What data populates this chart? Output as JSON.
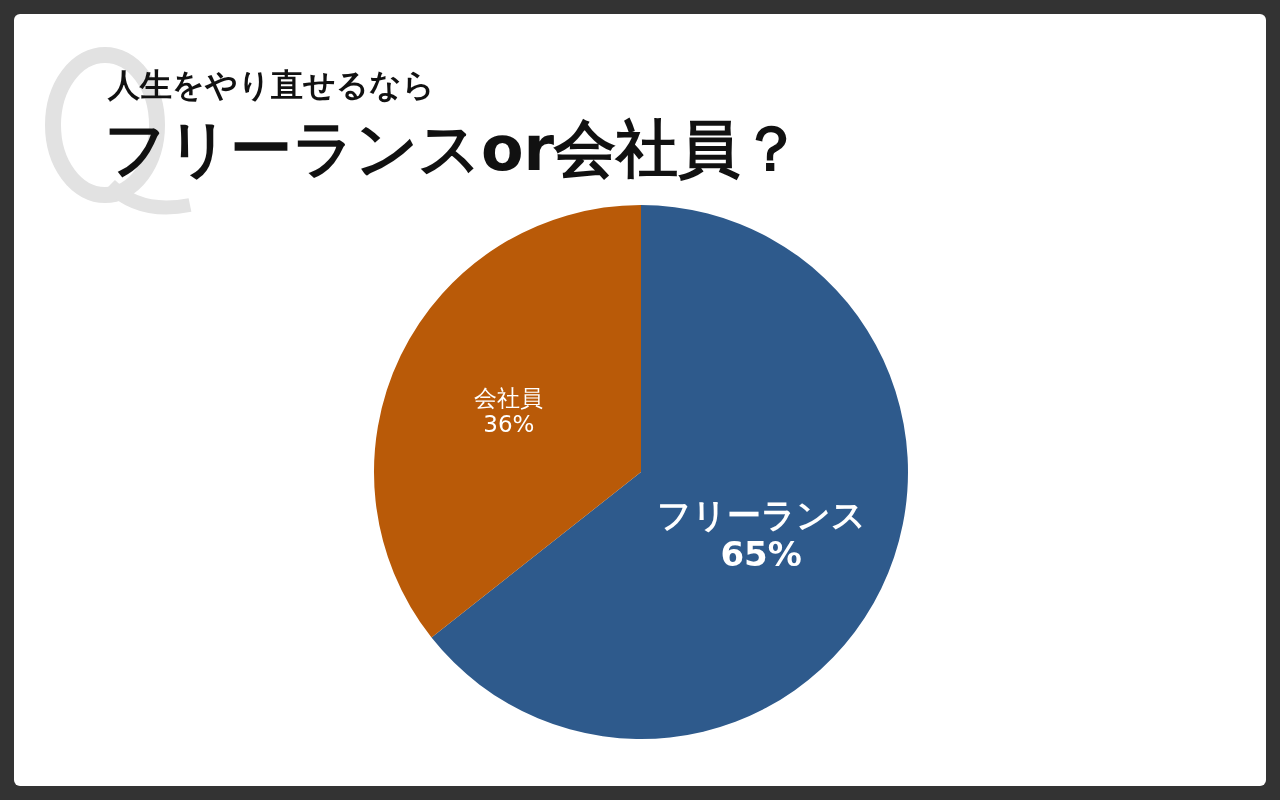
{
  "chart_data": {
    "type": "pie",
    "title": "人生をやり直せるなら",
    "subtitle": "フリーランスor会社員？",
    "categories": [
      "フリーランス",
      "会社員"
    ],
    "values": [
      65,
      36
    ],
    "colors": [
      "#2e5a8c",
      "#b95a08"
    ],
    "value_labels": [
      "65%",
      "36%"
    ]
  }
}
